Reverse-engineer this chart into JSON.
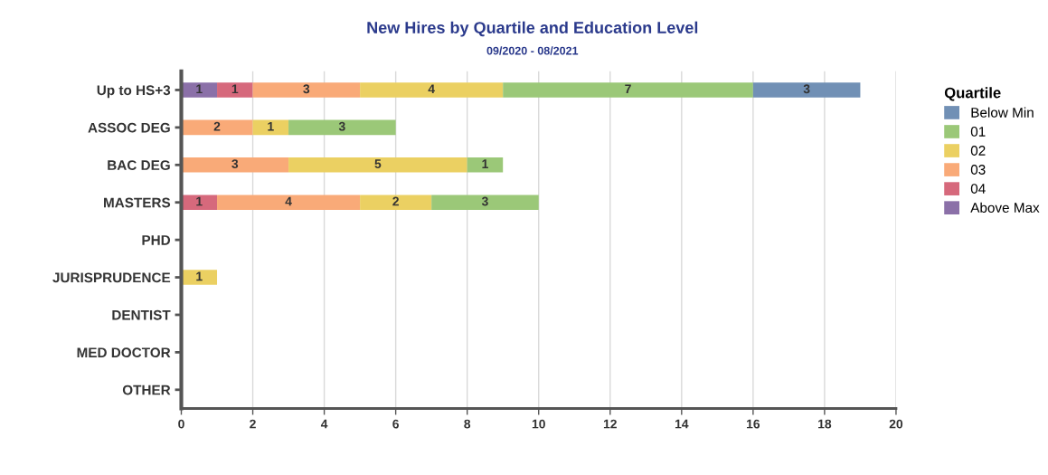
{
  "chart_data": {
    "type": "bar",
    "orientation": "horizontal",
    "stacked": true,
    "title": "New Hires by Quartile and Education Level",
    "subtitle": "09/2020 - 08/2021",
    "legend_title": "Quartile",
    "categories": [
      "Up to HS+3",
      "ASSOC DEG",
      "BAC DEG",
      "MASTERS",
      "PHD",
      "JURISPRUDENCE",
      "DENTIST",
      "MED DOCTOR",
      "OTHER"
    ],
    "series": [
      {
        "name": "Above Max",
        "color": "#8b70a8",
        "values": [
          1,
          null,
          null,
          null,
          null,
          null,
          null,
          null,
          null
        ]
      },
      {
        "name": "04",
        "color": "#d6697c",
        "values": [
          1,
          null,
          null,
          1,
          null,
          null,
          null,
          null,
          null
        ]
      },
      {
        "name": "03",
        "color": "#f9aa78",
        "values": [
          3,
          2,
          3,
          4,
          null,
          null,
          null,
          null,
          null
        ]
      },
      {
        "name": "02",
        "color": "#ebd062",
        "values": [
          4,
          1,
          5,
          2,
          null,
          1,
          null,
          null,
          null
        ]
      },
      {
        "name": "01",
        "color": "#9bc878",
        "values": [
          7,
          3,
          1,
          3,
          null,
          null,
          null,
          null,
          null
        ]
      },
      {
        "name": "Below Min",
        "color": "#7190b5",
        "values": [
          3,
          null,
          null,
          null,
          null,
          null,
          null,
          null,
          null
        ]
      }
    ],
    "xlim": [
      0,
      20
    ],
    "xticks": [
      0,
      2,
      4,
      6,
      8,
      10,
      12,
      14,
      16,
      18,
      20
    ],
    "grid": "x",
    "legend": "right",
    "data_labels": true
  }
}
